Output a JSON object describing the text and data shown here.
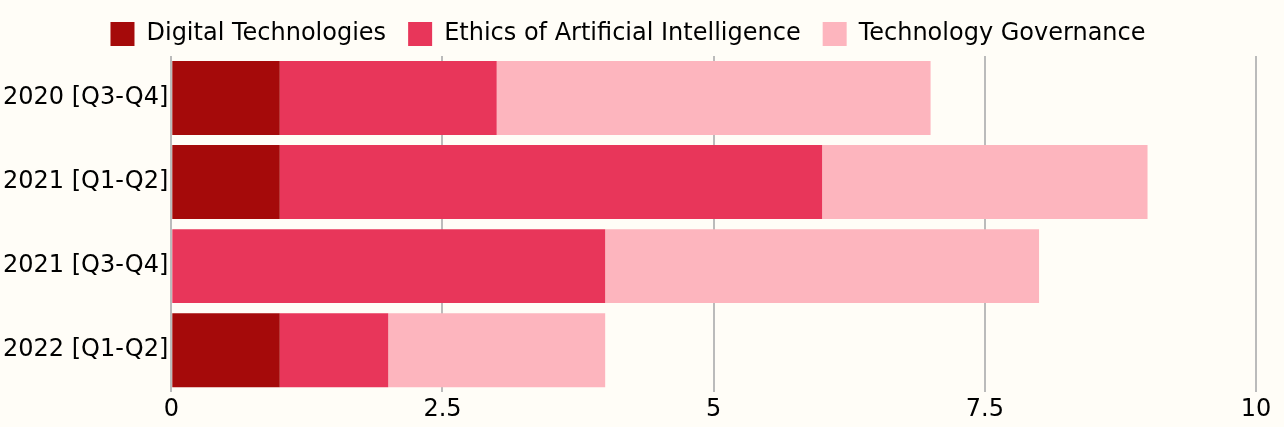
{
  "chart_data": {
    "type": "bar",
    "orientation": "horizontal",
    "stacked": true,
    "categories": [
      "2020 [Q3-Q4]",
      "2021 [Q1-Q2]",
      "2021 [Q3-Q4]",
      "2022 [Q1-Q2]"
    ],
    "series": [
      {
        "name": "Digital Technologies",
        "color": "#a50a0a",
        "values": [
          1,
          1,
          0,
          1
        ]
      },
      {
        "name": "Ethics of Artificial Intelligence",
        "color": "#e8365a",
        "values": [
          2,
          5,
          4,
          1
        ]
      },
      {
        "name": "Technology Governance",
        "color": "#fdb5be",
        "values": [
          4,
          3,
          4,
          2
        ]
      }
    ],
    "xlim": [
      0,
      10
    ],
    "xticks": [
      0,
      2.5,
      5,
      7.5,
      10
    ],
    "grid": "x",
    "legend": "top"
  }
}
